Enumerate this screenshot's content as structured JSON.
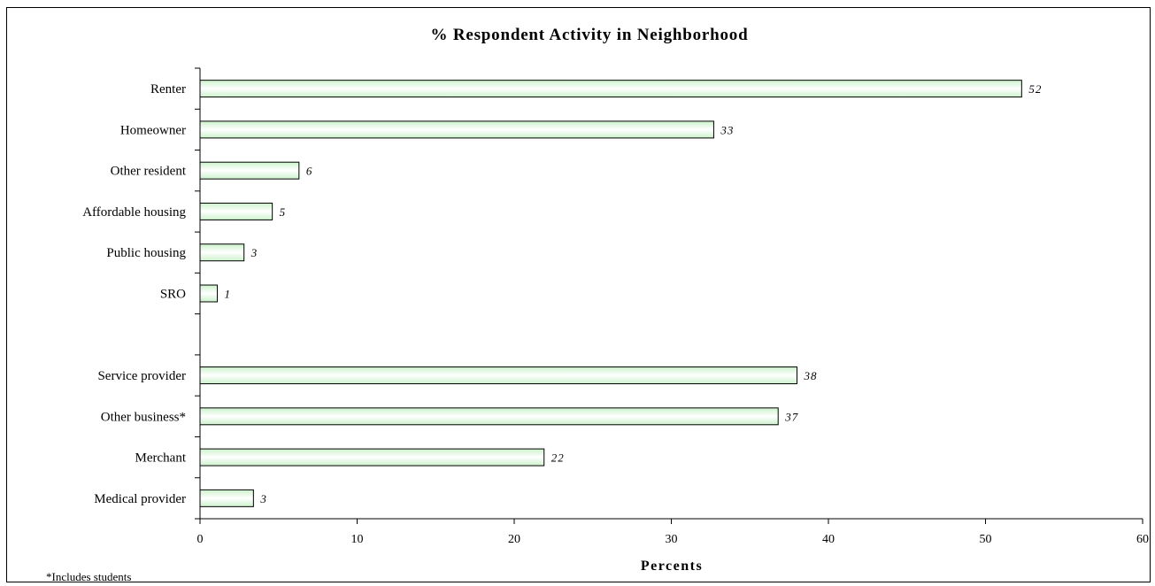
{
  "chart_data": {
    "type": "bar",
    "orientation": "horizontal",
    "title": "% Respondent Activity in Neighborhood",
    "xlabel": "Percents",
    "ylabel": "",
    "xlim": [
      0,
      60
    ],
    "x_ticks": [
      0,
      10,
      20,
      30,
      40,
      50,
      60
    ],
    "categories": [
      "Renter",
      "Homeowner",
      "Other resident",
      "Affordable housing",
      "Public housing",
      "SRO",
      "",
      "Service provider",
      "Other business*",
      "Merchant",
      "Medical provider"
    ],
    "values": [
      52.3,
      32.7,
      6.3,
      4.6,
      2.8,
      1.1,
      null,
      38.0,
      36.8,
      21.9,
      3.4
    ],
    "data_labels": [
      "52",
      "33",
      "6",
      "5",
      "3",
      "1",
      "",
      "38",
      "37",
      "22",
      "3"
    ],
    "bar_color": "#ccf2cc",
    "bar_highlight": "#ffffff",
    "bar_border": "#000000",
    "grid": false,
    "legend": "none",
    "footnote": "*Includes students"
  }
}
